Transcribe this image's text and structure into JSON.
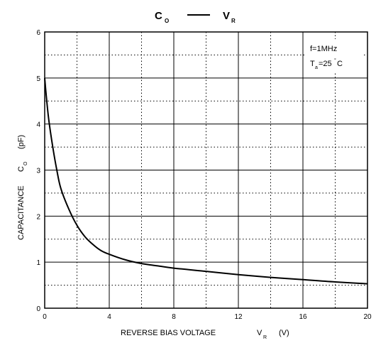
{
  "chart_data": {
    "type": "line",
    "title": {
      "left_main": "C",
      "left_sub": "O",
      "right_main": "V",
      "right_sub": "R"
    },
    "xlabel": {
      "main": "REVERSE BIAS VOLTAGE",
      "var": "V",
      "var_sub": "R",
      "unit": "(V)"
    },
    "ylabel": {
      "main": "CAPACITANCE",
      "var": "C",
      "var_sub": "O",
      "unit": "(pF)"
    },
    "annotation": {
      "line1": "f=1MHz",
      "line2_main": "T",
      "line2_sub": "a",
      "line2_rest": "=25",
      "line2_deg": "°",
      "line2_unit": "C"
    },
    "xlim": [
      0,
      20
    ],
    "ylim": [
      0,
      6
    ],
    "x_ticks": [
      "0",
      "4",
      "8",
      "12",
      "16",
      "20"
    ],
    "y_ticks": [
      "0",
      "1",
      "2",
      "3",
      "4",
      "5",
      "6"
    ],
    "grid": {
      "major": true,
      "minor_dotted": true
    },
    "series": [
      {
        "x": [
          0,
          0.1,
          0.25,
          0.5,
          0.75,
          1,
          1.5,
          2,
          2.5,
          3,
          3.5,
          4,
          5,
          6,
          7,
          8,
          10,
          12,
          14,
          16,
          18,
          20
        ],
        "y": [
          5.0,
          4.6,
          4.1,
          3.5,
          3.0,
          2.6,
          2.15,
          1.8,
          1.55,
          1.38,
          1.25,
          1.17,
          1.05,
          0.97,
          0.92,
          0.87,
          0.8,
          0.73,
          0.67,
          0.62,
          0.57,
          0.53
        ]
      }
    ]
  }
}
